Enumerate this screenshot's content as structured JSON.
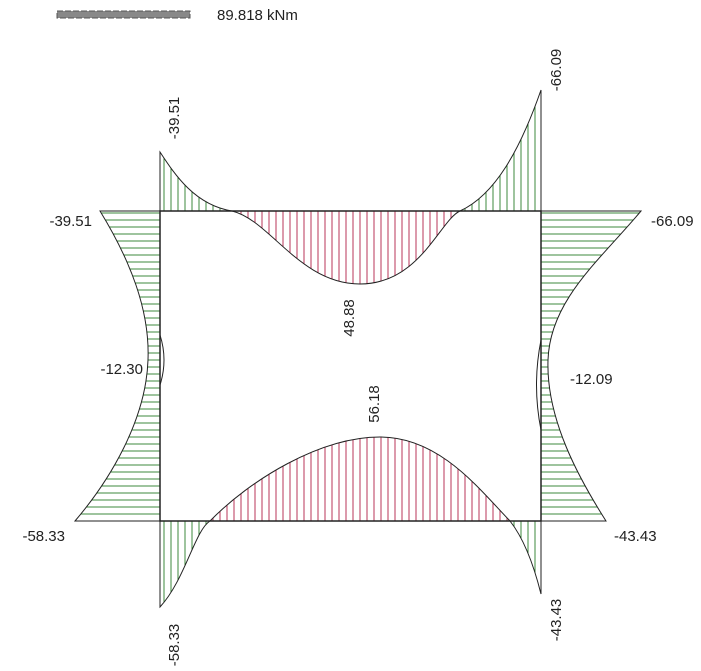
{
  "legend": {
    "scale_label": "89.818 kNm"
  },
  "labels": {
    "top_left_end": "-39.51",
    "top_right_end": "-66.09",
    "left_top": "-39.51",
    "right_top": "-66.09",
    "top_mid": "48.88",
    "left_mid": "-12.30",
    "right_mid": "-12.09",
    "bottom_mid": "56.18",
    "left_bottom": "-58.33",
    "right_bottom": "-43.43",
    "bottom_left_end": "-58.33",
    "bottom_right_end": "-43.43"
  }
}
